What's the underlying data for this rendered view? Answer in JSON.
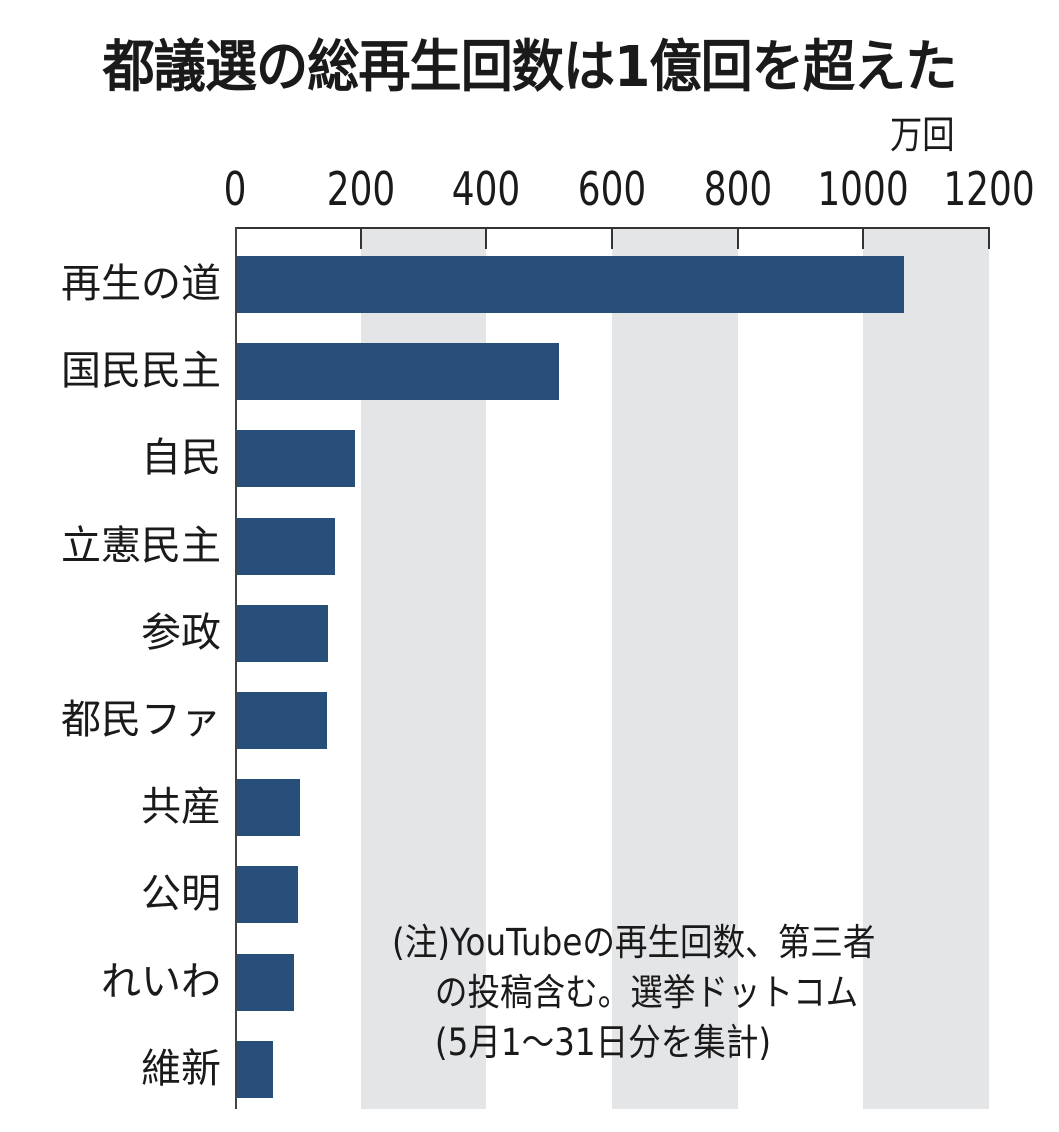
{
  "title": "都議選の総再生回数は1億回を超えた",
  "unit_label": "万回",
  "note": {
    "lines": [
      "(注)YouTubeの再生回数、第三者",
      "　 の投稿含む。選挙ドットコム",
      "　 (5月1～31日分を集計)"
    ]
  },
  "colors": {
    "bar": "#274f7a",
    "band": "#e4e5e7",
    "axis": "#333333"
  },
  "chart_data": {
    "type": "bar",
    "orientation": "horizontal",
    "title": "都議選の総再生回数は1億回を超えた",
    "xlabel": "万回",
    "ylabel": "",
    "xlim": [
      0,
      1200
    ],
    "x_ticks": [
      "0",
      "200",
      "400",
      "600",
      "800",
      "1000",
      "1200"
    ],
    "grid": "alternating shaded bands every 200",
    "categories": [
      "再生の道",
      "国民民主",
      "自民",
      "立憲民主",
      "参政",
      "都民ファ",
      "共産",
      "公明",
      "れいわ",
      "維新"
    ],
    "values": [
      1063,
      514,
      189,
      157,
      146,
      145,
      102,
      98,
      92,
      59
    ],
    "annotations": [
      "(注)YouTubeの再生回数、第三者の投稿含む。選挙ドットコム(5月1～31日分を集計)"
    ]
  }
}
